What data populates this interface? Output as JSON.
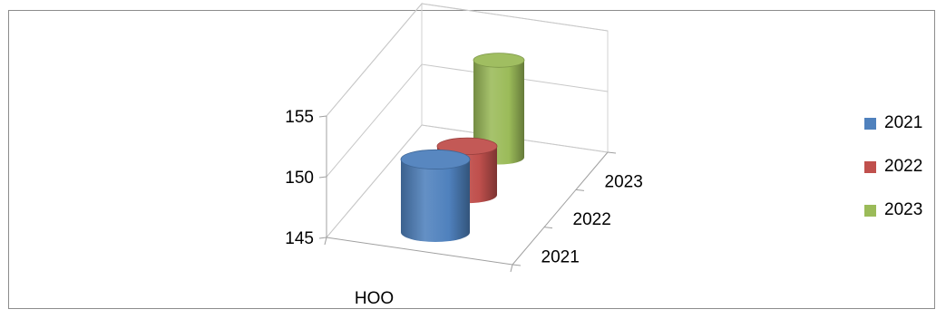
{
  "chart_data": {
    "type": "bar",
    "style": "3d-cylinder",
    "categories": [
      "HOO"
    ],
    "depth_categories": [
      "2021",
      "2022",
      "2023"
    ],
    "series": [
      {
        "name": "2021",
        "values": [
          151
        ],
        "color": "#4f81bd"
      },
      {
        "name": "2022",
        "values": [
          149
        ],
        "color": "#c0504d"
      },
      {
        "name": "2023",
        "values": [
          153
        ],
        "color": "#9bbb59"
      }
    ],
    "y_ticks": [
      "145",
      "150",
      "155"
    ],
    "ylim": [
      145,
      155
    ],
    "legend_position": "right",
    "grid": true
  }
}
